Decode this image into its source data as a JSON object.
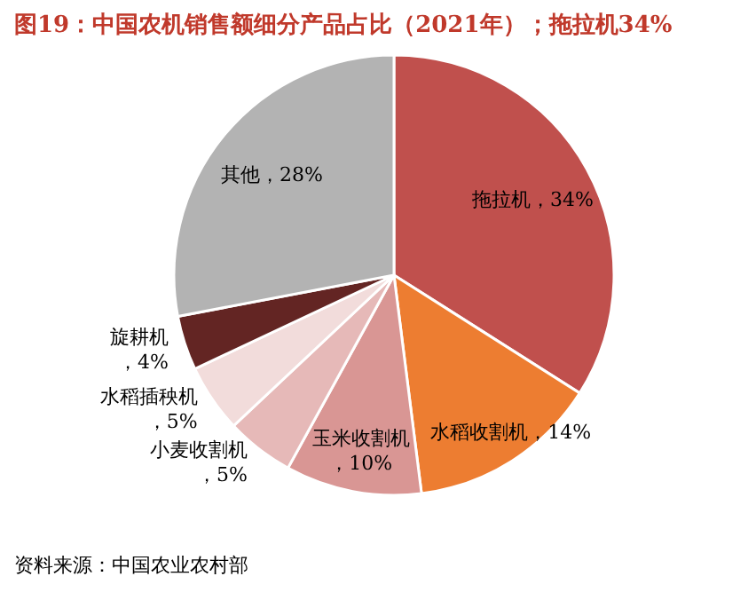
{
  "chart_data": {
    "type": "pie",
    "title": "图19：中国农机销售额细分产品占比（2021年）；拖拉机34%",
    "categories": [
      "拖拉机",
      "水稻收割机",
      "玉米收割机",
      "小麦收割机",
      "水稻插秧机",
      "旋耕机",
      "其他"
    ],
    "values": [
      34,
      14,
      10,
      5,
      5,
      4,
      28
    ],
    "colors": [
      "#c0504d",
      "#ed7d31",
      "#d99694",
      "#e6b9b8",
      "#f2dcdb",
      "#632523",
      "#b3b3b3"
    ],
    "value_labels": [
      "，34%",
      "，14%",
      "，10%",
      "，5%",
      "，5%",
      "，4%",
      "，28%"
    ],
    "annotations": [
      "资料来源：中国农业农村部"
    ]
  }
}
